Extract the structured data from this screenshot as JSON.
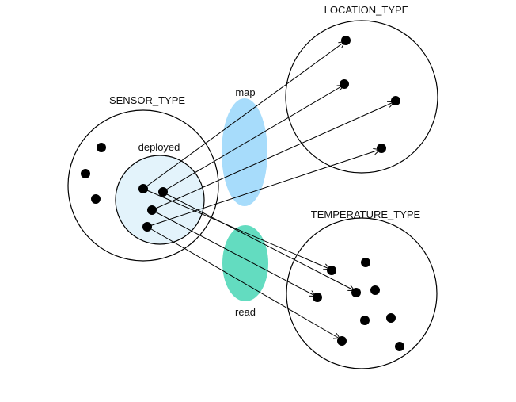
{
  "colors": {
    "map_oval": "#a7dcfb",
    "read_oval": "#63dcc0",
    "deployed_fill": "#e3f3fb",
    "stroke": "#000000",
    "dot": "#000000"
  },
  "sets": {
    "sensor_type": {
      "label": "SENSOR_TYPE"
    },
    "deployed": {
      "label": "deployed"
    },
    "location_type": {
      "label": "LOCATION_TYPE"
    },
    "temperature_type": {
      "label": "TEMPERATURE_TYPE"
    }
  },
  "relations": {
    "map": {
      "label": "map"
    },
    "read": {
      "label": "read"
    }
  }
}
